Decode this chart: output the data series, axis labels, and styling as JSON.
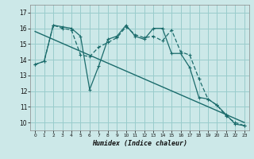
{
  "xlabel": "Humidex (Indice chaleur)",
  "bg_color": "#cce8e8",
  "grid_color": "#99cccc",
  "line_color": "#1a6b6b",
  "xlim": [
    -0.5,
    23.5
  ],
  "ylim": [
    9.5,
    17.5
  ],
  "yticks": [
    10,
    11,
    12,
    13,
    14,
    15,
    16,
    17
  ],
  "xticks": [
    0,
    1,
    2,
    3,
    4,
    5,
    6,
    7,
    8,
    9,
    10,
    11,
    12,
    13,
    14,
    15,
    16,
    17,
    18,
    19,
    20,
    21,
    22,
    23
  ],
  "series1_x": [
    0,
    1,
    2,
    3,
    4,
    5,
    6,
    7,
    8,
    9,
    10,
    11,
    12,
    13,
    14,
    15,
    16,
    17,
    18,
    19,
    20,
    21,
    22,
    23
  ],
  "series1_y": [
    13.7,
    13.9,
    16.2,
    16.1,
    16.0,
    15.5,
    12.1,
    13.6,
    15.3,
    15.5,
    16.2,
    15.5,
    15.3,
    16.0,
    16.0,
    14.4,
    14.4,
    13.5,
    11.6,
    11.5,
    11.1,
    10.5,
    9.9,
    9.8
  ],
  "series2_x": [
    0,
    1,
    2,
    3,
    4,
    5,
    6,
    7,
    8,
    9,
    10,
    11,
    12,
    13,
    14,
    15,
    16,
    17,
    18,
    19,
    20,
    21,
    22,
    23
  ],
  "series2_y": [
    13.7,
    13.9,
    16.2,
    16.0,
    15.9,
    14.3,
    14.2,
    14.8,
    15.1,
    15.4,
    16.1,
    15.6,
    15.4,
    15.5,
    15.2,
    15.9,
    14.5,
    14.3,
    12.8,
    11.5,
    11.1,
    10.4,
    10.0,
    9.8
  ],
  "trend_x": [
    0,
    23
  ],
  "trend_y": [
    15.8,
    10.0
  ]
}
